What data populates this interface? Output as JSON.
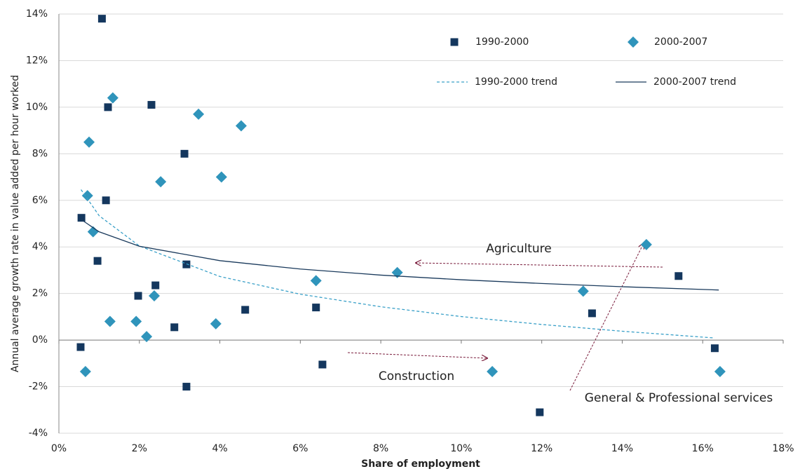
{
  "chart_data": {
    "type": "scatter",
    "x_label": "Share of employment",
    "y_label": "Annual average growth rate in value added per hour worked",
    "xlim": [
      0,
      18
    ],
    "ylim": [
      -4,
      14
    ],
    "xticks": [
      {
        "value": 0,
        "label": "0%"
      },
      {
        "value": 2,
        "label": "2%"
      },
      {
        "value": 4,
        "label": "4%"
      },
      {
        "value": 6,
        "label": "6%"
      },
      {
        "value": 8,
        "label": "8%"
      },
      {
        "value": 10,
        "label": "10%"
      },
      {
        "value": 12,
        "label": "12%"
      },
      {
        "value": 14,
        "label": "14%"
      },
      {
        "value": 16,
        "label": "16%"
      },
      {
        "value": 18,
        "label": "18%"
      }
    ],
    "yticks": [
      {
        "value": -4,
        "label": "-4%"
      },
      {
        "value": -2,
        "label": "-2%"
      },
      {
        "value": 0,
        "label": "0%"
      },
      {
        "value": 2,
        "label": "2%"
      },
      {
        "value": 4,
        "label": "4%"
      },
      {
        "value": 6,
        "label": "6%"
      },
      {
        "value": 8,
        "label": "8%"
      },
      {
        "value": 10,
        "label": "10%"
      },
      {
        "value": 12,
        "label": "12%"
      },
      {
        "value": 14,
        "label": "14%"
      }
    ],
    "grid": true,
    "series": [
      {
        "name": "1990-2000",
        "color": "#14375e",
        "marker": "square",
        "x": [
          0.56,
          0.54,
          0.96,
          1.07,
          1.17,
          1.22,
          1.97,
          2.3,
          2.4,
          2.87,
          3.12,
          3.17,
          3.17,
          4.63,
          6.39,
          6.55,
          11.95,
          13.25,
          15.4,
          16.3
        ],
        "values": [
          5.25,
          -0.3,
          3.4,
          13.8,
          6.0,
          10.0,
          1.9,
          10.1,
          2.35,
          0.55,
          8.0,
          3.25,
          -2.0,
          1.3,
          1.4,
          -1.05,
          -3.1,
          1.15,
          2.75,
          -0.35
        ]
      },
      {
        "name": "2000-2007",
        "color": "#2f94bb",
        "marker": "diamond",
        "x": [
          0.66,
          0.71,
          0.75,
          0.85,
          1.27,
          1.34,
          1.92,
          2.18,
          2.37,
          2.53,
          3.47,
          3.9,
          4.04,
          4.53,
          6.39,
          8.41,
          10.77,
          13.03,
          14.6,
          16.43
        ],
        "values": [
          -1.35,
          6.2,
          8.5,
          4.65,
          0.8,
          10.4,
          0.8,
          0.15,
          1.9,
          6.8,
          9.7,
          0.7,
          7.0,
          9.2,
          2.55,
          2.9,
          -1.35,
          2.1,
          4.1,
          -1.35
        ]
      },
      {
        "name": "1990-2000 trend",
        "color": "#3aa0c8",
        "marker": "dashed",
        "x": [
          0.55,
          1,
          2,
          4,
          6,
          8,
          10,
          12,
          14,
          16.3
        ],
        "values": [
          6.46,
          5.34,
          4.04,
          2.73,
          1.97,
          1.43,
          1.01,
          0.67,
          0.38,
          0.09
        ]
      },
      {
        "name": "2000-2007 trend",
        "color": "#1a3a5c",
        "marker": "solid",
        "x": [
          0.55,
          1,
          2,
          4,
          6,
          8,
          10,
          12,
          14,
          16.4
        ],
        "values": [
          5.18,
          4.65,
          4.03,
          3.41,
          3.05,
          2.79,
          2.59,
          2.43,
          2.29,
          2.15
        ]
      }
    ],
    "annotations": [
      "Agriculture",
      "Construction",
      "General & Professional services"
    ]
  }
}
